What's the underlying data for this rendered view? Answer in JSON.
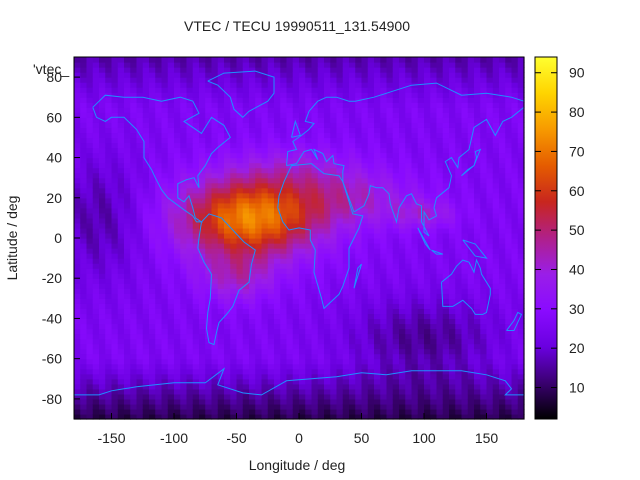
{
  "chart_data": {
    "type": "heatmap",
    "title": "VTEC / TECU 19990511_131.54900",
    "xlabel": "Longitude / deg",
    "ylabel": "Latitude / deg",
    "key_label": "'vtec_",
    "xlim": [
      -180,
      180
    ],
    "ylim": [
      -90,
      90
    ],
    "xticks": [
      -150,
      -100,
      -50,
      0,
      50,
      100,
      150
    ],
    "yticks": [
      -80,
      -60,
      -40,
      -20,
      0,
      20,
      40,
      60,
      80
    ],
    "colorbar": {
      "min": 2,
      "max": 94,
      "ticks": [
        10,
        20,
        30,
        40,
        50,
        60,
        70,
        80,
        90
      ]
    },
    "colormap": [
      "#000000",
      "#3a0070",
      "#6a00e0",
      "#8a0bff",
      "#9a1ee8",
      "#b0208a",
      "#c8261e",
      "#e55c00",
      "#f79a00",
      "#ffd400",
      "#ffff30"
    ],
    "overlay_color": "#1e90ff",
    "grid": false,
    "description": "Global vertical total electron content; peak near lon -50, lat 5 (~75 TECU), minima near poles (~5 TECU)."
  }
}
